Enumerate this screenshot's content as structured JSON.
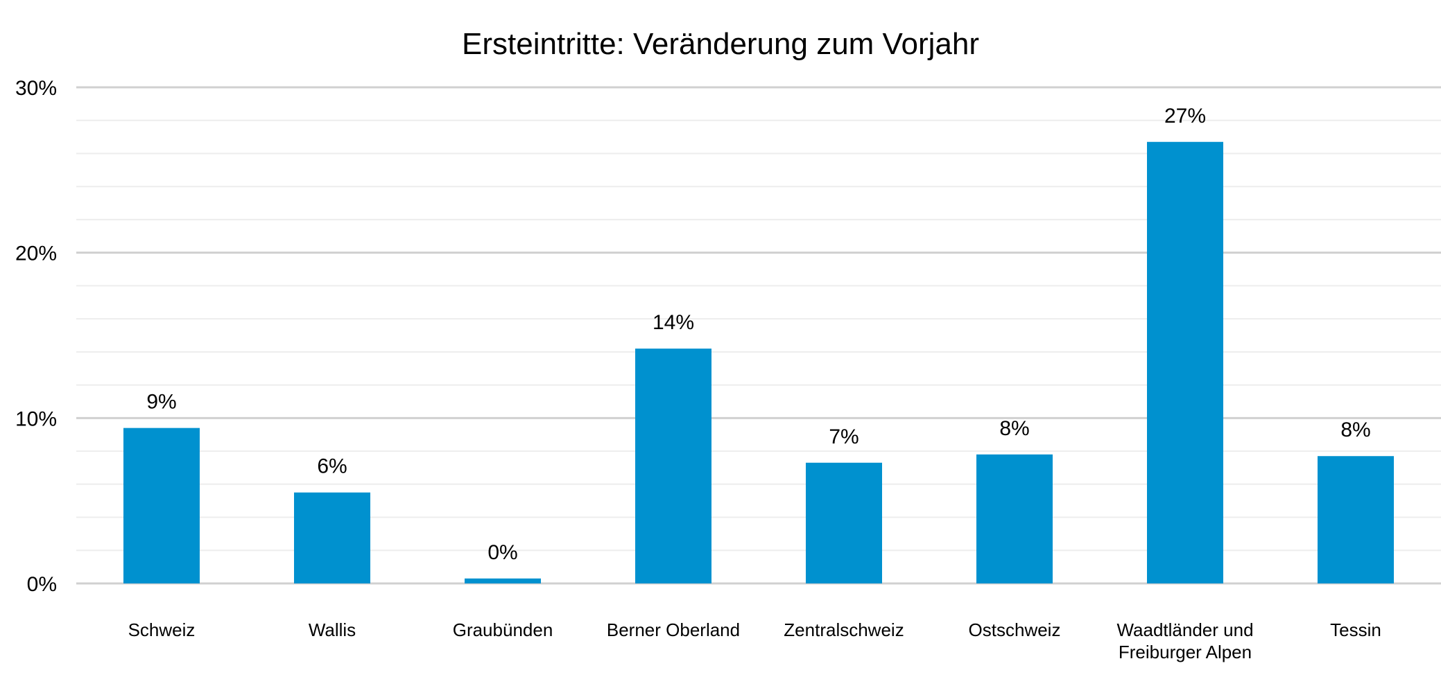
{
  "chart_data": {
    "type": "bar",
    "title": "Ersteintritte: Veränderung zum Vorjahr",
    "xlabel": "",
    "ylabel": "",
    "ylim": [
      0,
      30
    ],
    "yticks": [
      0,
      10,
      20,
      30
    ],
    "ytick_labels": [
      "0%",
      "10%",
      "20%",
      "30%"
    ],
    "minor_grid_step": 2,
    "grid": true,
    "legend": "none",
    "categories": [
      [
        "Schweiz"
      ],
      [
        "Wallis"
      ],
      [
        "Graubünden"
      ],
      [
        "Berner Oberland"
      ],
      [
        "Zentralschweiz"
      ],
      [
        "Ostschweiz"
      ],
      [
        "Waadtländer und",
        "Freiburger Alpen"
      ],
      [
        "Tessin"
      ]
    ],
    "values": [
      9.4,
      5.5,
      0.3,
      14.2,
      7.3,
      7.8,
      26.7,
      7.7
    ],
    "data_labels": [
      "9%",
      "6%",
      "0%",
      "14%",
      "7%",
      "8%",
      "27%",
      "8%"
    ],
    "colors": {
      "bar": "#0091CF",
      "major_grid": "#D0D0D0",
      "minor_grid": "#EDEDED"
    }
  }
}
